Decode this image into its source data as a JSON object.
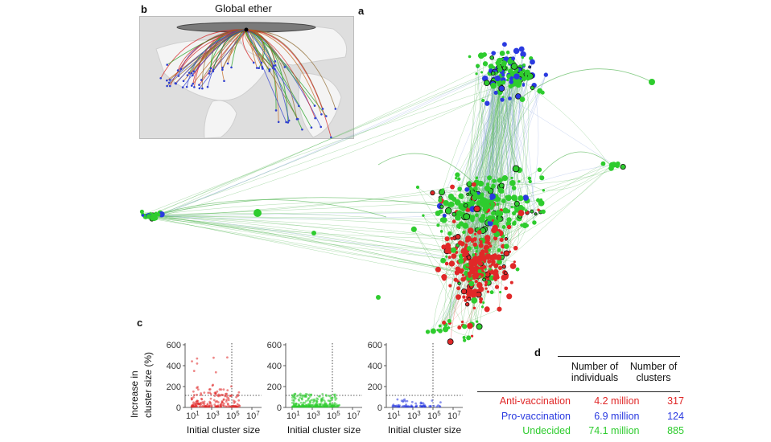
{
  "panels": {
    "a": "a",
    "b": "b",
    "c": "c",
    "d": "d"
  },
  "map": {
    "title": "Global ether",
    "link_colors": [
      "#d42020",
      "#22a022",
      "#3040d0",
      "#8e6a30",
      "#c06a20"
    ]
  },
  "network": {
    "colors": {
      "anti": "#e02828",
      "pro": "#2a3ae0",
      "undecided": "#2ecc2e",
      "edge": "#58b858"
    }
  },
  "scatter": {
    "ylabel_line1": "Increase in",
    "ylabel_line2": "cluster size (%)",
    "xlabel": "Initial cluster size",
    "y_ticks": [
      "600",
      "400",
      "200",
      "0"
    ],
    "x_ticks": [
      "10",
      "10",
      "10",
      "10"
    ],
    "x_exps": [
      "1",
      "3",
      "5",
      "7"
    ],
    "plots": [
      {
        "name": "Anti-vaccination",
        "color": "#e02828"
      },
      {
        "name": "Undecided",
        "color": "#2ecc2e"
      },
      {
        "name": "Pro-vaccination",
        "color": "#2a3ae0"
      }
    ]
  },
  "table": {
    "col1_line1": "Number of",
    "col1_line2": "individuals",
    "col2_line1": "Number of",
    "col2_line2": "clusters",
    "rows": [
      {
        "label": "Anti-vaccination",
        "individuals": "4.2 million",
        "clusters": "317",
        "color": "#e02828"
      },
      {
        "label": "Pro-vaccination",
        "individuals": "6.9 million",
        "clusters": "124",
        "color": "#2a3ae0"
      },
      {
        "label": "Undecided",
        "individuals": "74.1 million",
        "clusters": "885",
        "color": "#2ecc2e"
      }
    ]
  }
}
